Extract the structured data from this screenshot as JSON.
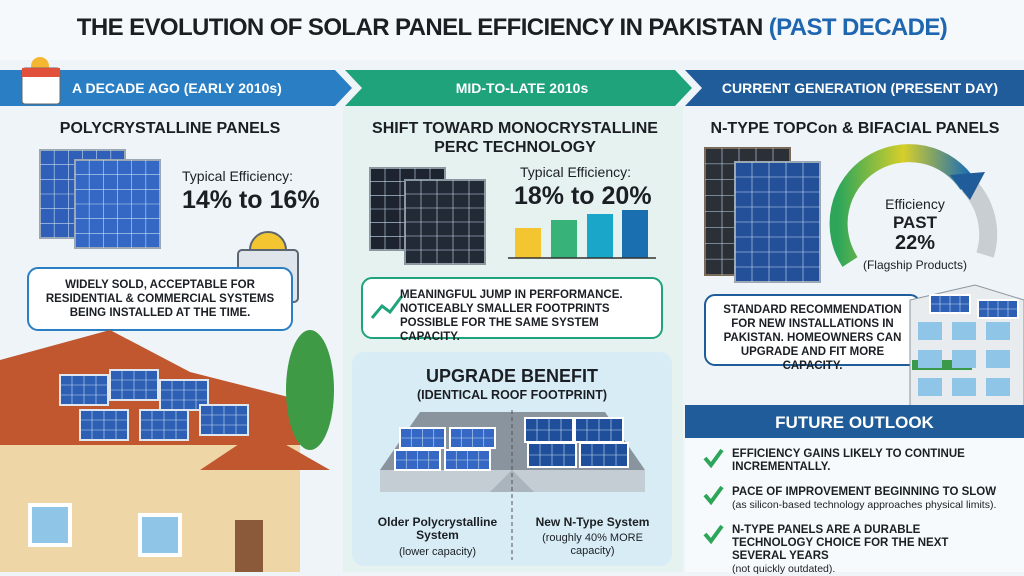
{
  "title": {
    "main": "THE EVOLUTION OF SOLAR PANEL EFFICIENCY IN PAKISTAN",
    "highlight": "(PAST DECADE)"
  },
  "columns": [
    {
      "header": "A DECADE AGO (EARLY 2010s)",
      "subtitle": "POLYCRYSTALLINE PANELS",
      "efficiency_label": "Typical Efficiency:",
      "efficiency": "14% to 16%",
      "note": "WIDELY SOLD, ACCEPTABLE FOR RESIDENTIAL & COMMERCIAL SYSTEMS BEING INSTALLED AT THE TIME."
    },
    {
      "header": "MID-TO-LATE 2010s",
      "subtitle": "SHIFT TOWARD MONOCRYSTALLINE PERC TECHNOLOGY",
      "efficiency_label": "Typical Efficiency:",
      "efficiency": "18% to 20%",
      "note": "MEANINGFUL JUMP IN PERFORMANCE. NOTICEABLY SMALLER FOOTPRINTS POSSIBLE FOR THE SAME SYSTEM CAPACITY."
    },
    {
      "header": "CURRENT GENERATION (PRESENT DAY)",
      "subtitle": "N-TYPE TOPCon & BIFACIAL PANELS",
      "efficiency_label": "Efficiency",
      "efficiency_prefix": "PAST",
      "efficiency": "22%",
      "efficiency_note": "(Flagship Products)",
      "note": "STANDARD RECOMMENDATION FOR NEW INSTALLATIONS IN PAKISTAN. HOMEOWNERS CAN UPGRADE AND FIT MORE CAPACITY."
    }
  ],
  "upgrade": {
    "title": "UPGRADE BENEFIT",
    "subtitle": "(IDENTICAL ROOF FOOTPRINT)",
    "left": {
      "label": "Older Polycrystalline System",
      "note": "(lower capacity)"
    },
    "right": {
      "label": "New N-Type System",
      "note": "(roughly 40% MORE capacity)"
    }
  },
  "outlook": {
    "title": "FUTURE OUTLOOK",
    "items": [
      {
        "text": "EFFICIENCY GAINS LIKELY TO CONTINUE INCREMENTALLY."
      },
      {
        "text": "PACE OF IMPROVEMENT BEGINNING TO SLOW",
        "note": "(as silicon-based technology approaches physical limits)."
      },
      {
        "text": "N-TYPE PANELS ARE A DURABLE TECHNOLOGY CHOICE FOR THE NEXT SEVERAL YEARS",
        "note": "(not quickly outdated)."
      }
    ]
  }
}
